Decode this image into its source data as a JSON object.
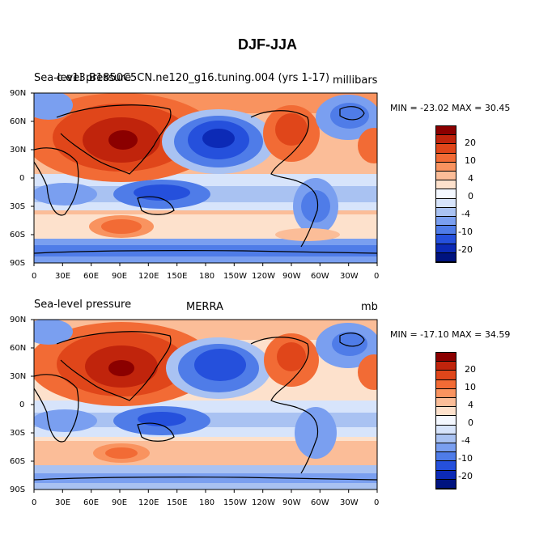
{
  "figure": {
    "title": "DJF-JJA"
  },
  "panels": [
    {
      "id": "model",
      "left_label": "Sea-level pressure",
      "center_label": "c.e13.B1850C5CN.ne120_g16.tuning.004 (yrs 1-17)",
      "units": "millibars",
      "min_max": "MIN = -23.02 MAX =  30.45",
      "min": -23.02,
      "max": 30.45
    },
    {
      "id": "obs",
      "left_label": "Sea-level pressure",
      "center_label": "MERRA",
      "units": "mb",
      "min_max": "MIN = -17.10 MAX =  34.59",
      "min": -17.1,
      "max": 34.59
    }
  ],
  "axes": {
    "lon_ticks": [
      "0",
      "30E",
      "60E",
      "90E",
      "120E",
      "150E",
      "180",
      "150W",
      "120W",
      "90W",
      "60W",
      "30W",
      "0"
    ],
    "lat_ticks": [
      "90N",
      "60N",
      "30N",
      "0",
      "30S",
      "60S",
      "90S"
    ]
  },
  "colorbar": {
    "labels": [
      "20",
      "10",
      "4",
      "0",
      "-4",
      "-10",
      "-20"
    ],
    "colors": [
      "#8b0000",
      "#c0240c",
      "#e0461a",
      "#f26b35",
      "#f9935f",
      "#fbbd98",
      "#fde1cc",
      "#f4f8ff",
      "#d7e4fb",
      "#a9c2f2",
      "#7a9ff0",
      "#4f7ce8",
      "#2550dc",
      "#0c2ab6",
      "#00137f"
    ]
  }
}
